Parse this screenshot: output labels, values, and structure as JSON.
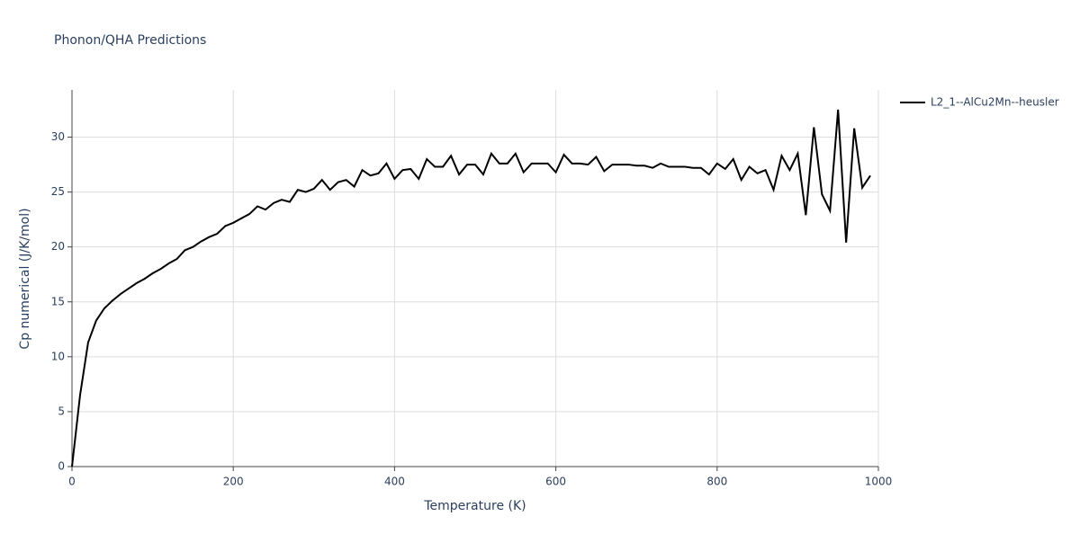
{
  "chart_data": {
    "type": "line",
    "title": "Phonon/QHA Predictions",
    "x_label": "Temperature (K)",
    "y_label": "Cp numerical (J/K/mol)",
    "x": [
      0,
      10,
      20,
      30,
      40,
      50,
      60,
      70,
      80,
      90,
      100,
      110,
      120,
      130,
      140,
      150,
      160,
      170,
      180,
      190,
      200,
      210,
      220,
      230,
      240,
      250,
      260,
      270,
      280,
      290,
      300,
      310,
      320,
      330,
      340,
      350,
      360,
      370,
      380,
      390,
      400,
      410,
      420,
      430,
      440,
      450,
      460,
      470,
      480,
      490,
      500,
      510,
      520,
      530,
      540,
      550,
      560,
      570,
      580,
      590,
      600,
      610,
      620,
      630,
      640,
      650,
      660,
      670,
      680,
      690,
      700,
      710,
      720,
      730,
      740,
      750,
      760,
      770,
      780,
      790,
      800,
      810,
      820,
      830,
      840,
      850,
      860,
      870,
      880,
      890,
      900,
      910,
      920,
      930,
      940,
      950,
      960,
      970,
      980,
      990
    ],
    "series": [
      {
        "name": "L2_1--AlCu2Mn--heusler",
        "color": "#000000",
        "values": [
          0,
          6.5,
          11.3,
          13.3,
          14.4,
          15.1,
          15.7,
          16.2,
          16.7,
          17.1,
          17.6,
          18.0,
          18.5,
          18.9,
          19.7,
          20.0,
          20.5,
          20.9,
          21.2,
          21.9,
          22.2,
          22.6,
          23.0,
          23.7,
          23.4,
          24.0,
          24.3,
          24.1,
          25.2,
          25.0,
          25.3,
          26.1,
          25.2,
          25.9,
          26.1,
          25.5,
          27.0,
          26.5,
          26.7,
          27.6,
          26.2,
          27.0,
          27.1,
          26.2,
          28.0,
          27.3,
          27.3,
          28.3,
          26.6,
          27.5,
          27.5,
          26.6,
          28.5,
          27.6,
          27.6,
          28.5,
          26.8,
          27.6,
          27.6,
          27.6,
          26.8,
          28.4,
          27.6,
          27.6,
          27.5,
          28.2,
          26.9,
          27.5,
          27.5,
          27.5,
          27.4,
          27.4,
          27.2,
          27.6,
          27.3,
          27.3,
          27.3,
          27.2,
          27.2,
          26.6,
          27.6,
          27.1,
          28.0,
          26.1,
          27.3,
          26.7,
          27.0,
          25.2,
          28.3,
          27.0,
          28.5,
          22.9,
          30.9,
          24.8,
          23.3,
          32.5,
          20.4,
          30.8,
          25.4,
          26.5
        ]
      }
    ],
    "xlim": [
      0,
      1000
    ],
    "ylim": [
      0,
      34.3
    ],
    "xticks": [
      0,
      200,
      400,
      600,
      800,
      1000
    ],
    "yticks": [
      0,
      5,
      10,
      15,
      20,
      25,
      30
    ],
    "grid": true,
    "legend": "right"
  }
}
